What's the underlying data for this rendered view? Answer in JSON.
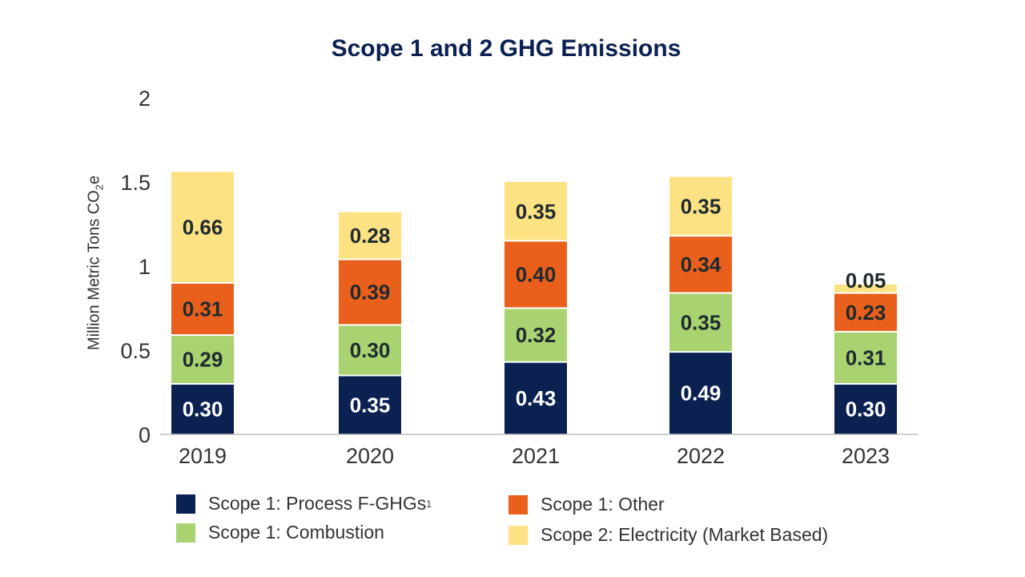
{
  "chart_data": {
    "type": "bar",
    "stacked": true,
    "title": "Scope 1 and 2 GHG Emissions",
    "ylabel_main": "Million Metric Tons CO",
    "ylabel_sub": "2",
    "ylabel_end": "e",
    "ylim": [
      0,
      2
    ],
    "yticks": [
      "0",
      "0.5",
      "1",
      "1.5",
      "2"
    ],
    "ytick_values": [
      0,
      0.5,
      1,
      1.5,
      2
    ],
    "grid": false,
    "legend_position": "bottom",
    "categories": [
      "2019",
      "2020",
      "2021",
      "2022",
      "2023"
    ],
    "series": [
      {
        "name": "Scope 1: Process F-GHGs",
        "footnote": "1",
        "color": "#0b2152",
        "label_color": "#ffffff",
        "values": [
          0.3,
          0.35,
          0.43,
          0.49,
          0.3
        ],
        "labels": [
          "0.30",
          "0.35",
          "0.43",
          "0.49",
          "0.30"
        ]
      },
      {
        "name": "Scope 1: Combustion",
        "color": "#a9d371",
        "label_color": "#1e2a2e",
        "values": [
          0.29,
          0.3,
          0.32,
          0.35,
          0.31
        ],
        "labels": [
          "0.29",
          "0.30",
          "0.32",
          "0.35",
          "0.31"
        ]
      },
      {
        "name": "Scope 1: Other",
        "color": "#e8601c",
        "label_color": "#1e2a2e",
        "values": [
          0.31,
          0.39,
          0.4,
          0.34,
          0.23
        ],
        "labels": [
          "0.31",
          "0.39",
          "0.40",
          "0.34",
          "0.23"
        ]
      },
      {
        "name": "Scope 2: Electricity (Market Based)",
        "color": "#fde283",
        "label_color": "#1e2a2e",
        "values": [
          0.66,
          0.28,
          0.35,
          0.35,
          0.05
        ],
        "labels": [
          "0.66",
          "0.28",
          "0.35",
          "0.35",
          "0.05"
        ]
      }
    ]
  }
}
